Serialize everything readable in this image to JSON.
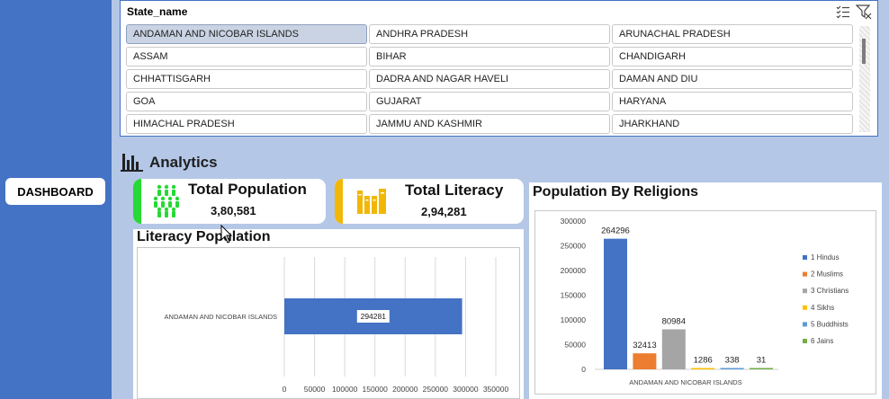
{
  "sidebar": {
    "dashboard_label": "DASHBOARD"
  },
  "slicer": {
    "title": "State_name",
    "items": [
      "ANDAMAN AND NICOBAR ISLANDS",
      "ANDHRA PRADESH",
      "ARUNACHAL PRADESH",
      "ASSAM",
      "BIHAR",
      "CHANDIGARH",
      "CHHATTISGARH",
      "DADRA AND NAGAR HAVELI",
      "DAMAN AND DIU",
      "GOA",
      "GUJARAT",
      "HARYANA",
      "HIMACHAL PRADESH",
      "JAMMU AND KASHMIR",
      "JHARKHAND"
    ],
    "selected_index": 0
  },
  "analytics": {
    "title": "Analytics"
  },
  "kpi": {
    "population": {
      "label": "Total Population",
      "value": "3,80,581",
      "accent": "#26d934"
    },
    "literacy": {
      "label": "Total Literacy",
      "value": "2,94,281",
      "accent": "#f2b705"
    }
  },
  "colors": {
    "sidebar": "#4472c4",
    "bar_blue": "#4472c4"
  },
  "chart_data": [
    {
      "type": "bar",
      "orientation": "horizontal",
      "title": "Literacy Population",
      "categories": [
        "ANDAMAN AND NICOBAR ISLANDS"
      ],
      "values": [
        294281
      ],
      "data_labels": [
        "294281"
      ],
      "xlim": [
        0,
        350000
      ],
      "x_ticks": [
        "0",
        "50000",
        "100000",
        "150000",
        "200000",
        "250000",
        "300000",
        "350000"
      ],
      "grid": true
    },
    {
      "type": "bar",
      "title": "Population By Religions",
      "categories": [
        "ANDAMAN AND NICOBAR ISLANDS"
      ],
      "series": [
        {
          "name": "1 Hindus",
          "values": [
            264296
          ],
          "color": "#4472c4"
        },
        {
          "name": "2 Muslims",
          "values": [
            32413
          ],
          "color": "#ed7d31"
        },
        {
          "name": "3 Christians",
          "values": [
            80984
          ],
          "color": "#a5a5a5"
        },
        {
          "name": "4 Sikhs",
          "values": [
            1286
          ],
          "color": "#ffc000"
        },
        {
          "name": "5 Buddhists",
          "values": [
            338
          ],
          "color": "#5b9bd5"
        },
        {
          "name": "6 Jains",
          "values": [
            31
          ],
          "color": "#70ad47"
        }
      ],
      "ylim": [
        0,
        300000
      ],
      "y_ticks": [
        "0",
        "50000",
        "100000",
        "150000",
        "200000",
        "250000",
        "300000"
      ],
      "legend": "right",
      "grid": false
    }
  ]
}
